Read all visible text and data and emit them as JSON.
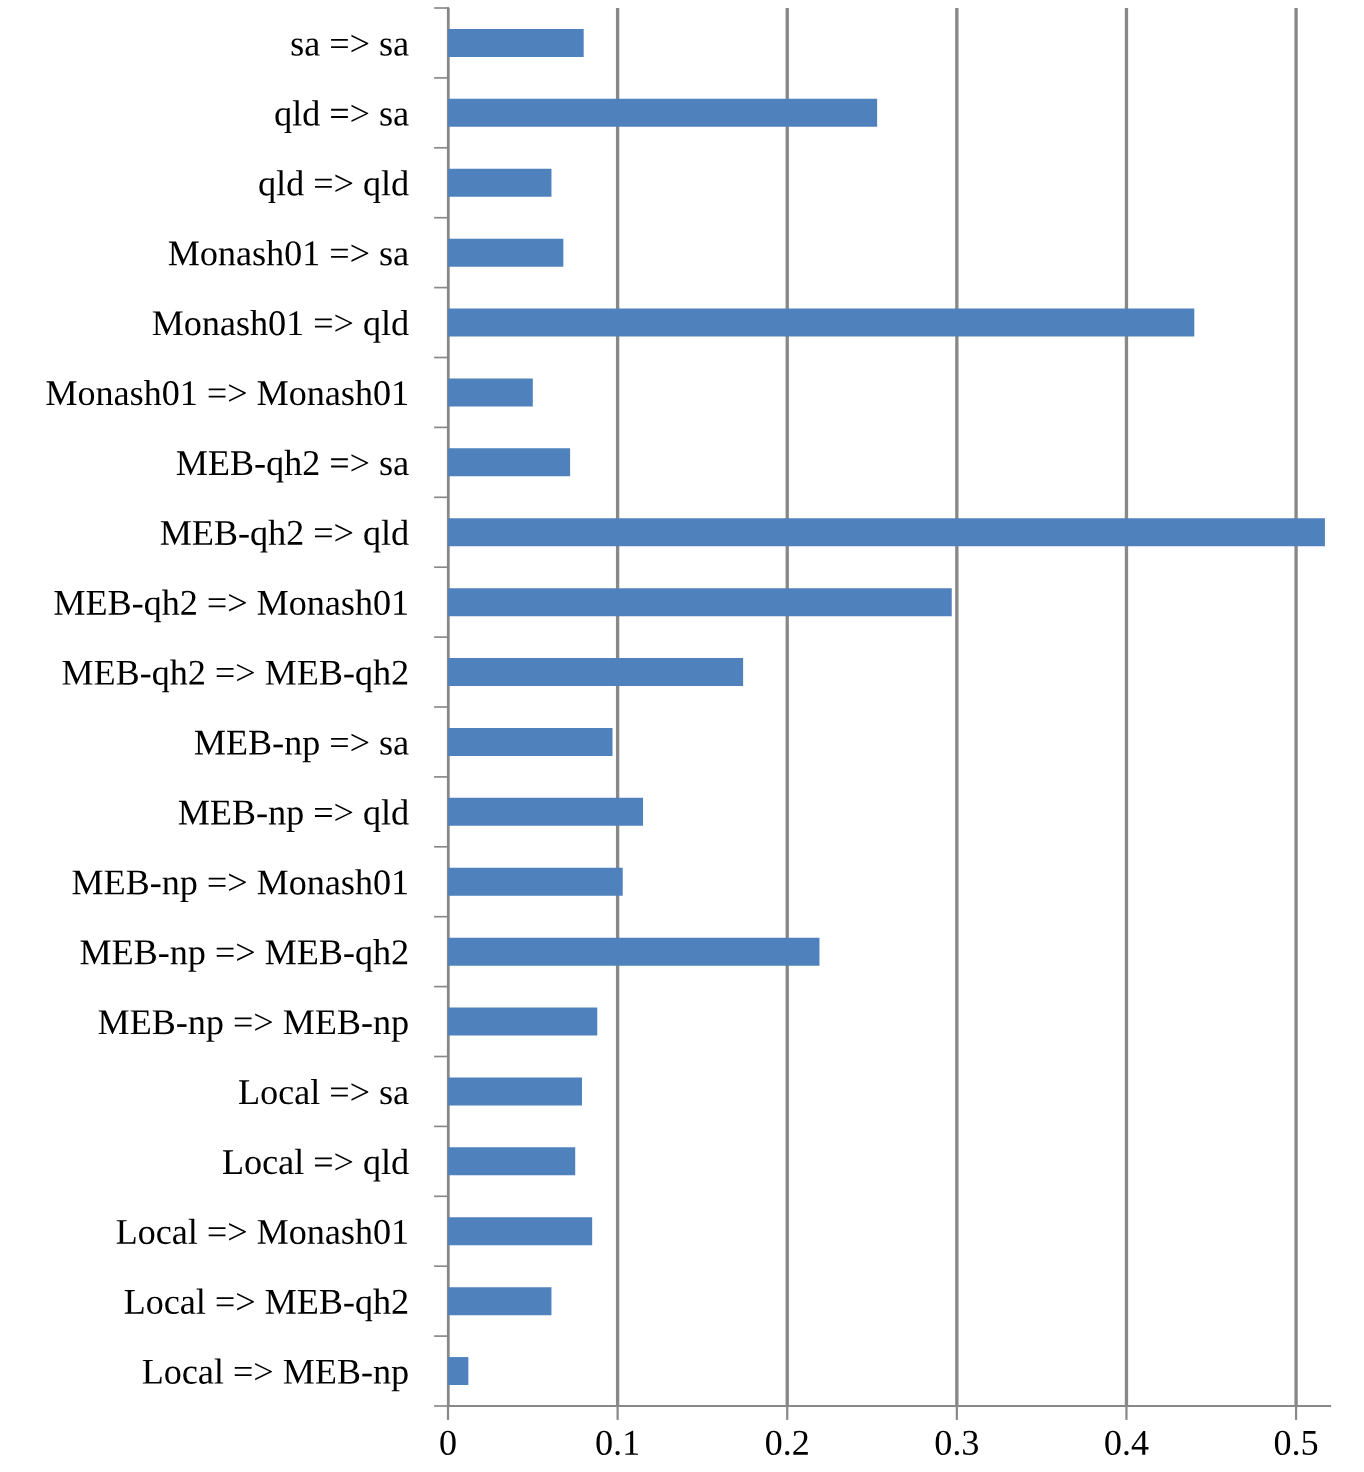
{
  "chart_data": {
    "type": "bar",
    "orientation": "horizontal",
    "categories": [
      "sa => sa",
      "qld => sa",
      "qld => qld",
      "Monash01 => sa",
      "Monash01 => qld",
      "Monash01 => Monash01",
      "MEB-qh2 => sa",
      "MEB-qh2 => qld",
      "MEB-qh2 => Monash01",
      "MEB-qh2 => MEB-qh2",
      "MEB-np => sa",
      "MEB-np => qld",
      "MEB-np => Monash01",
      "MEB-np => MEB-qh2",
      "MEB-np => MEB-np",
      "Local => sa",
      "Local => qld",
      "Local => Monash01",
      "Local => MEB-qh2",
      "Local => MEB-np"
    ],
    "values": [
      0.08,
      0.253,
      0.061,
      0.068,
      0.44,
      0.05,
      0.072,
      0.517,
      0.297,
      0.174,
      0.097,
      0.115,
      0.103,
      0.219,
      0.088,
      0.079,
      0.075,
      0.085,
      0.061,
      0.012
    ],
    "color": "#4f81bd",
    "xlim": [
      0,
      0.52
    ],
    "xticks": [
      0,
      0.1,
      0.2,
      0.3,
      0.4,
      0.5
    ],
    "grid": "x"
  }
}
